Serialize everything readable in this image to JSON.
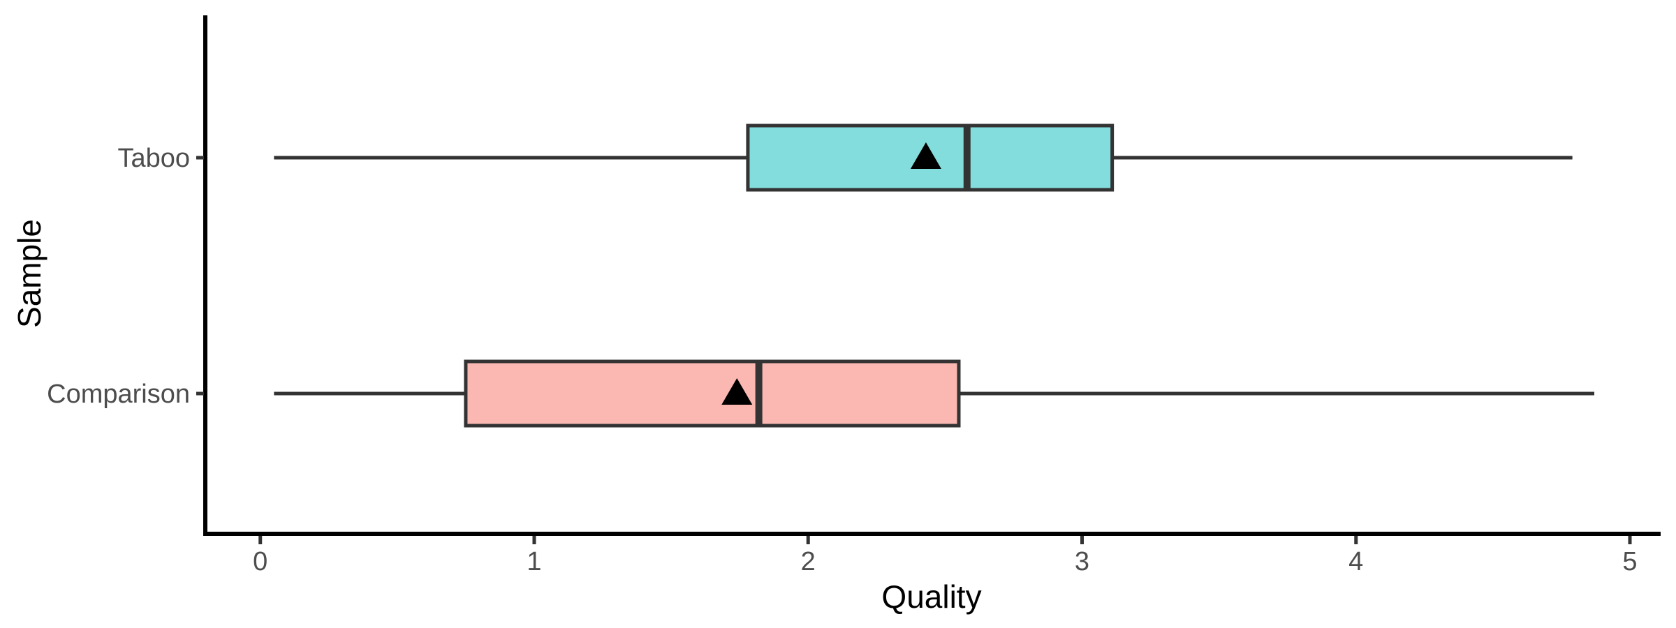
{
  "chart_data": {
    "type": "boxplot",
    "orientation": "horizontal",
    "title": "",
    "xlabel": "Quality",
    "ylabel": "Sample",
    "xlim": [
      -0.2,
      5.2
    ],
    "x_ticks": [
      0,
      1,
      2,
      3,
      4,
      5
    ],
    "categories": [
      "Taboo",
      "Comparison"
    ],
    "grid": false,
    "legend": false,
    "mean_marker": "filled-triangle",
    "series": [
      {
        "name": "Taboo",
        "fill_color": "#83DDDC",
        "whisker_min": 0.05,
        "q1": 1.78,
        "median": 2.58,
        "q3": 3.11,
        "whisker_max": 4.79,
        "mean": 2.43
      },
      {
        "name": "Comparison",
        "fill_color": "#FBB8B3",
        "whisker_min": 0.05,
        "q1": 0.75,
        "median": 1.82,
        "q3": 2.55,
        "whisker_max": 4.87,
        "mean": 1.74
      }
    ]
  },
  "colors": {
    "box_stroke": "#333333",
    "whisker": "#333333",
    "median": "#333333",
    "mean_marker": "#000000",
    "axis_line": "#000000",
    "tick_mark": "#333333",
    "tick_label": "#4D4D4D",
    "axis_title": "#000000",
    "background": "#FFFFFF"
  }
}
